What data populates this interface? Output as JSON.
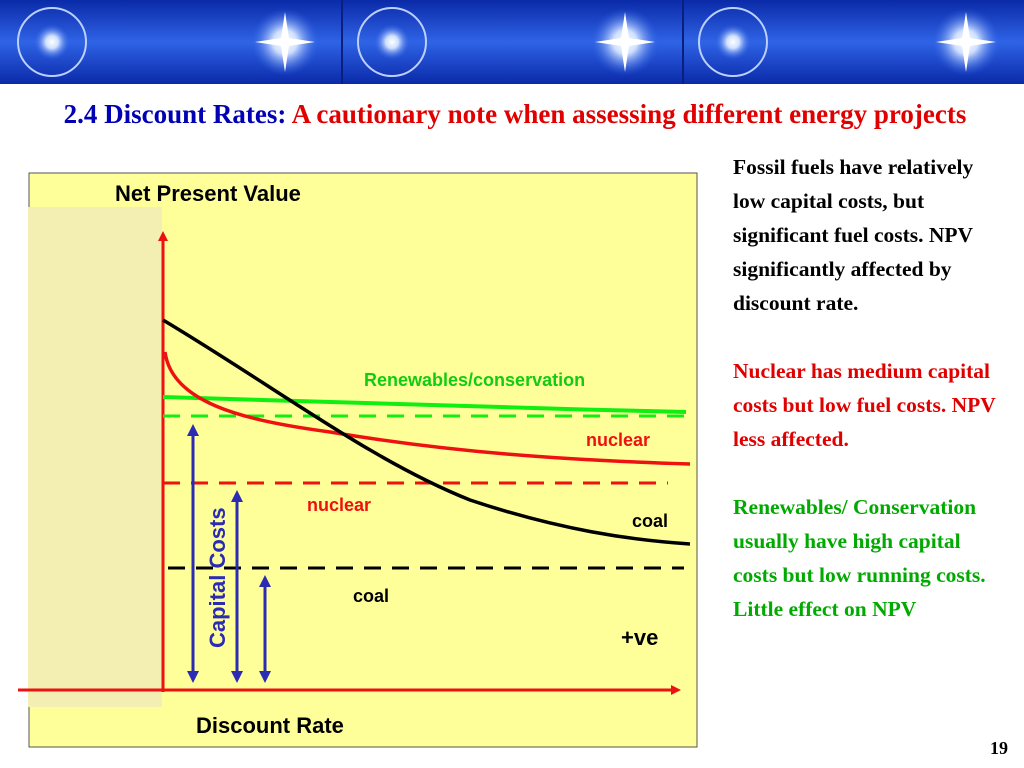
{
  "slide": {
    "title_prefix": "2.4 Discount Rates:",
    "title_accent": "A cautionary note when assessing different energy projects",
    "page_number": "19"
  },
  "diagram": {
    "ylabel": "Net Present Value",
    "xlabel": "Discount Rate",
    "capital_costs_label": "Capital Costs",
    "positive_label": "+ve",
    "curve_labels": {
      "renewables": "Renewables/conservation",
      "nuclear": "nuclear",
      "coal": "coal"
    },
    "level_labels": {
      "nuclear": "nuclear",
      "coal": "coal"
    },
    "colors": {
      "renewables": "#11ee11",
      "nuclear": "#ee1111",
      "coal": "#000000",
      "capital_arrows": "#2b2bb3",
      "axes": "#ee1111",
      "panel": "#ffff99",
      "sidebar": "#f3efb2"
    }
  },
  "notes": {
    "fossil": "Fossil fuels have relatively low capital costs, but significant fuel costs. NPV significantly affected by discount rate.",
    "nuclear": "Nuclear has medium capital costs but low fuel costs. NPV less affected.",
    "renewables": "Renewables/ Conservation usually have high capital costs but low running costs. Little effect on NPV"
  }
}
